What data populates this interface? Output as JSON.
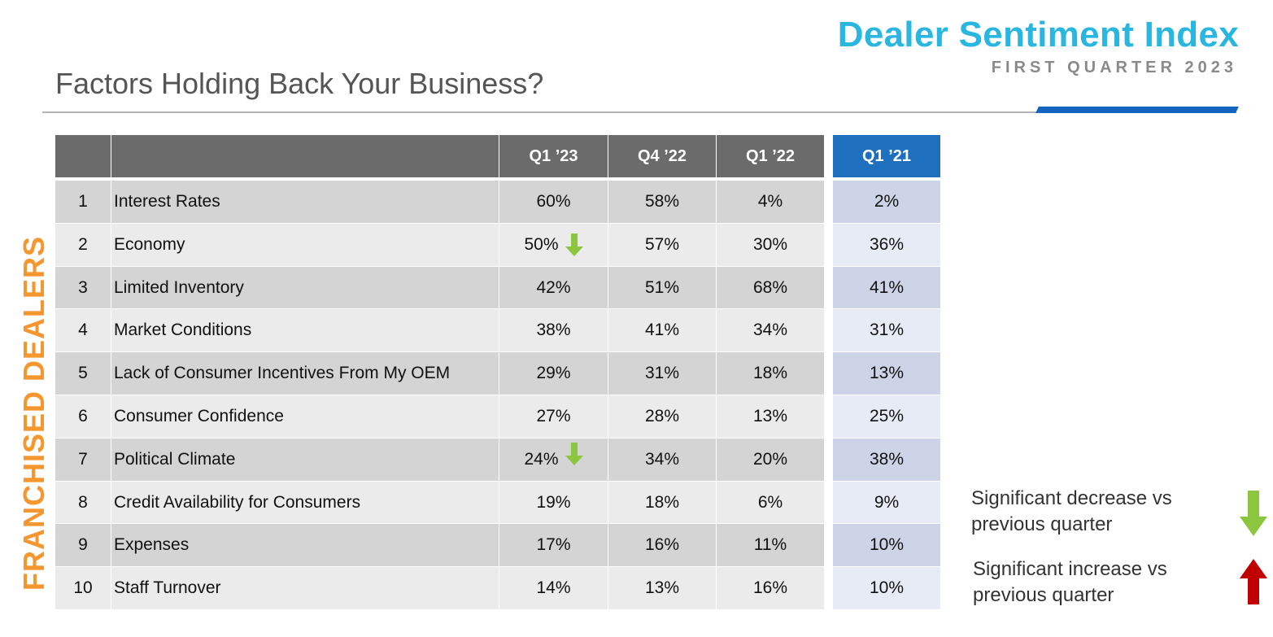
{
  "brand": {
    "title": "Dealer Sentiment Index",
    "subtitle": "FIRST QUARTER 2023"
  },
  "page": {
    "title": "Factors Holding Back Your Business?",
    "side_label": "FRANCHISED DEALERS"
  },
  "colors": {
    "brand_cyan": "#29b6e0",
    "accent_blue": "#1f6fbf",
    "side_orange": "#f5962e",
    "decrease_green": "#8cc63f",
    "increase_red": "#c00000"
  },
  "table": {
    "headers": [
      "",
      "",
      "Q1 ’23",
      "Q4 ’22",
      "Q1 ’22",
      "Q1 ’21"
    ],
    "rows": [
      {
        "rank": "1",
        "factor": "Interest Rates",
        "q1_23": "60%",
        "q4_22": "58%",
        "q1_22": "4%",
        "q1_21": "2%",
        "trend": ""
      },
      {
        "rank": "2",
        "factor": "Economy",
        "q1_23": "50%",
        "q4_22": "57%",
        "q1_22": "30%",
        "q1_21": "36%",
        "trend": "down"
      },
      {
        "rank": "3",
        "factor": "Limited Inventory",
        "q1_23": "42%",
        "q4_22": "51%",
        "q1_22": "68%",
        "q1_21": "41%",
        "trend": ""
      },
      {
        "rank": "4",
        "factor": "Market Conditions",
        "q1_23": "38%",
        "q4_22": "41%",
        "q1_22": "34%",
        "q1_21": "31%",
        "trend": ""
      },
      {
        "rank": "5",
        "factor": "Lack of Consumer Incentives From My OEM",
        "q1_23": "29%",
        "q4_22": "31%",
        "q1_22": "18%",
        "q1_21": "13%",
        "trend": ""
      },
      {
        "rank": "6",
        "factor": "Consumer Confidence",
        "q1_23": "27%",
        "q4_22": "28%",
        "q1_22": "13%",
        "q1_21": "25%",
        "trend": ""
      },
      {
        "rank": "7",
        "factor": "Political Climate",
        "q1_23": "24%",
        "q4_22": "34%",
        "q1_22": "20%",
        "q1_21": "38%",
        "trend": "down"
      },
      {
        "rank": "8",
        "factor": "Credit Availability for Consumers",
        "q1_23": "19%",
        "q4_22": "18%",
        "q1_22": "6%",
        "q1_21": "9%",
        "trend": ""
      },
      {
        "rank": "9",
        "factor": "Expenses",
        "q1_23": "17%",
        "q4_22": "16%",
        "q1_22": "11%",
        "q1_21": "10%",
        "trend": ""
      },
      {
        "rank": "10",
        "factor": "Staff Turnover",
        "q1_23": "14%",
        "q4_22": "13%",
        "q1_22": "16%",
        "q1_21": "10%",
        "trend": ""
      }
    ]
  },
  "legend": {
    "decrease": "Significant decrease vs\nprevious quarter",
    "increase": "Significant increase vs\nprevious quarter"
  }
}
